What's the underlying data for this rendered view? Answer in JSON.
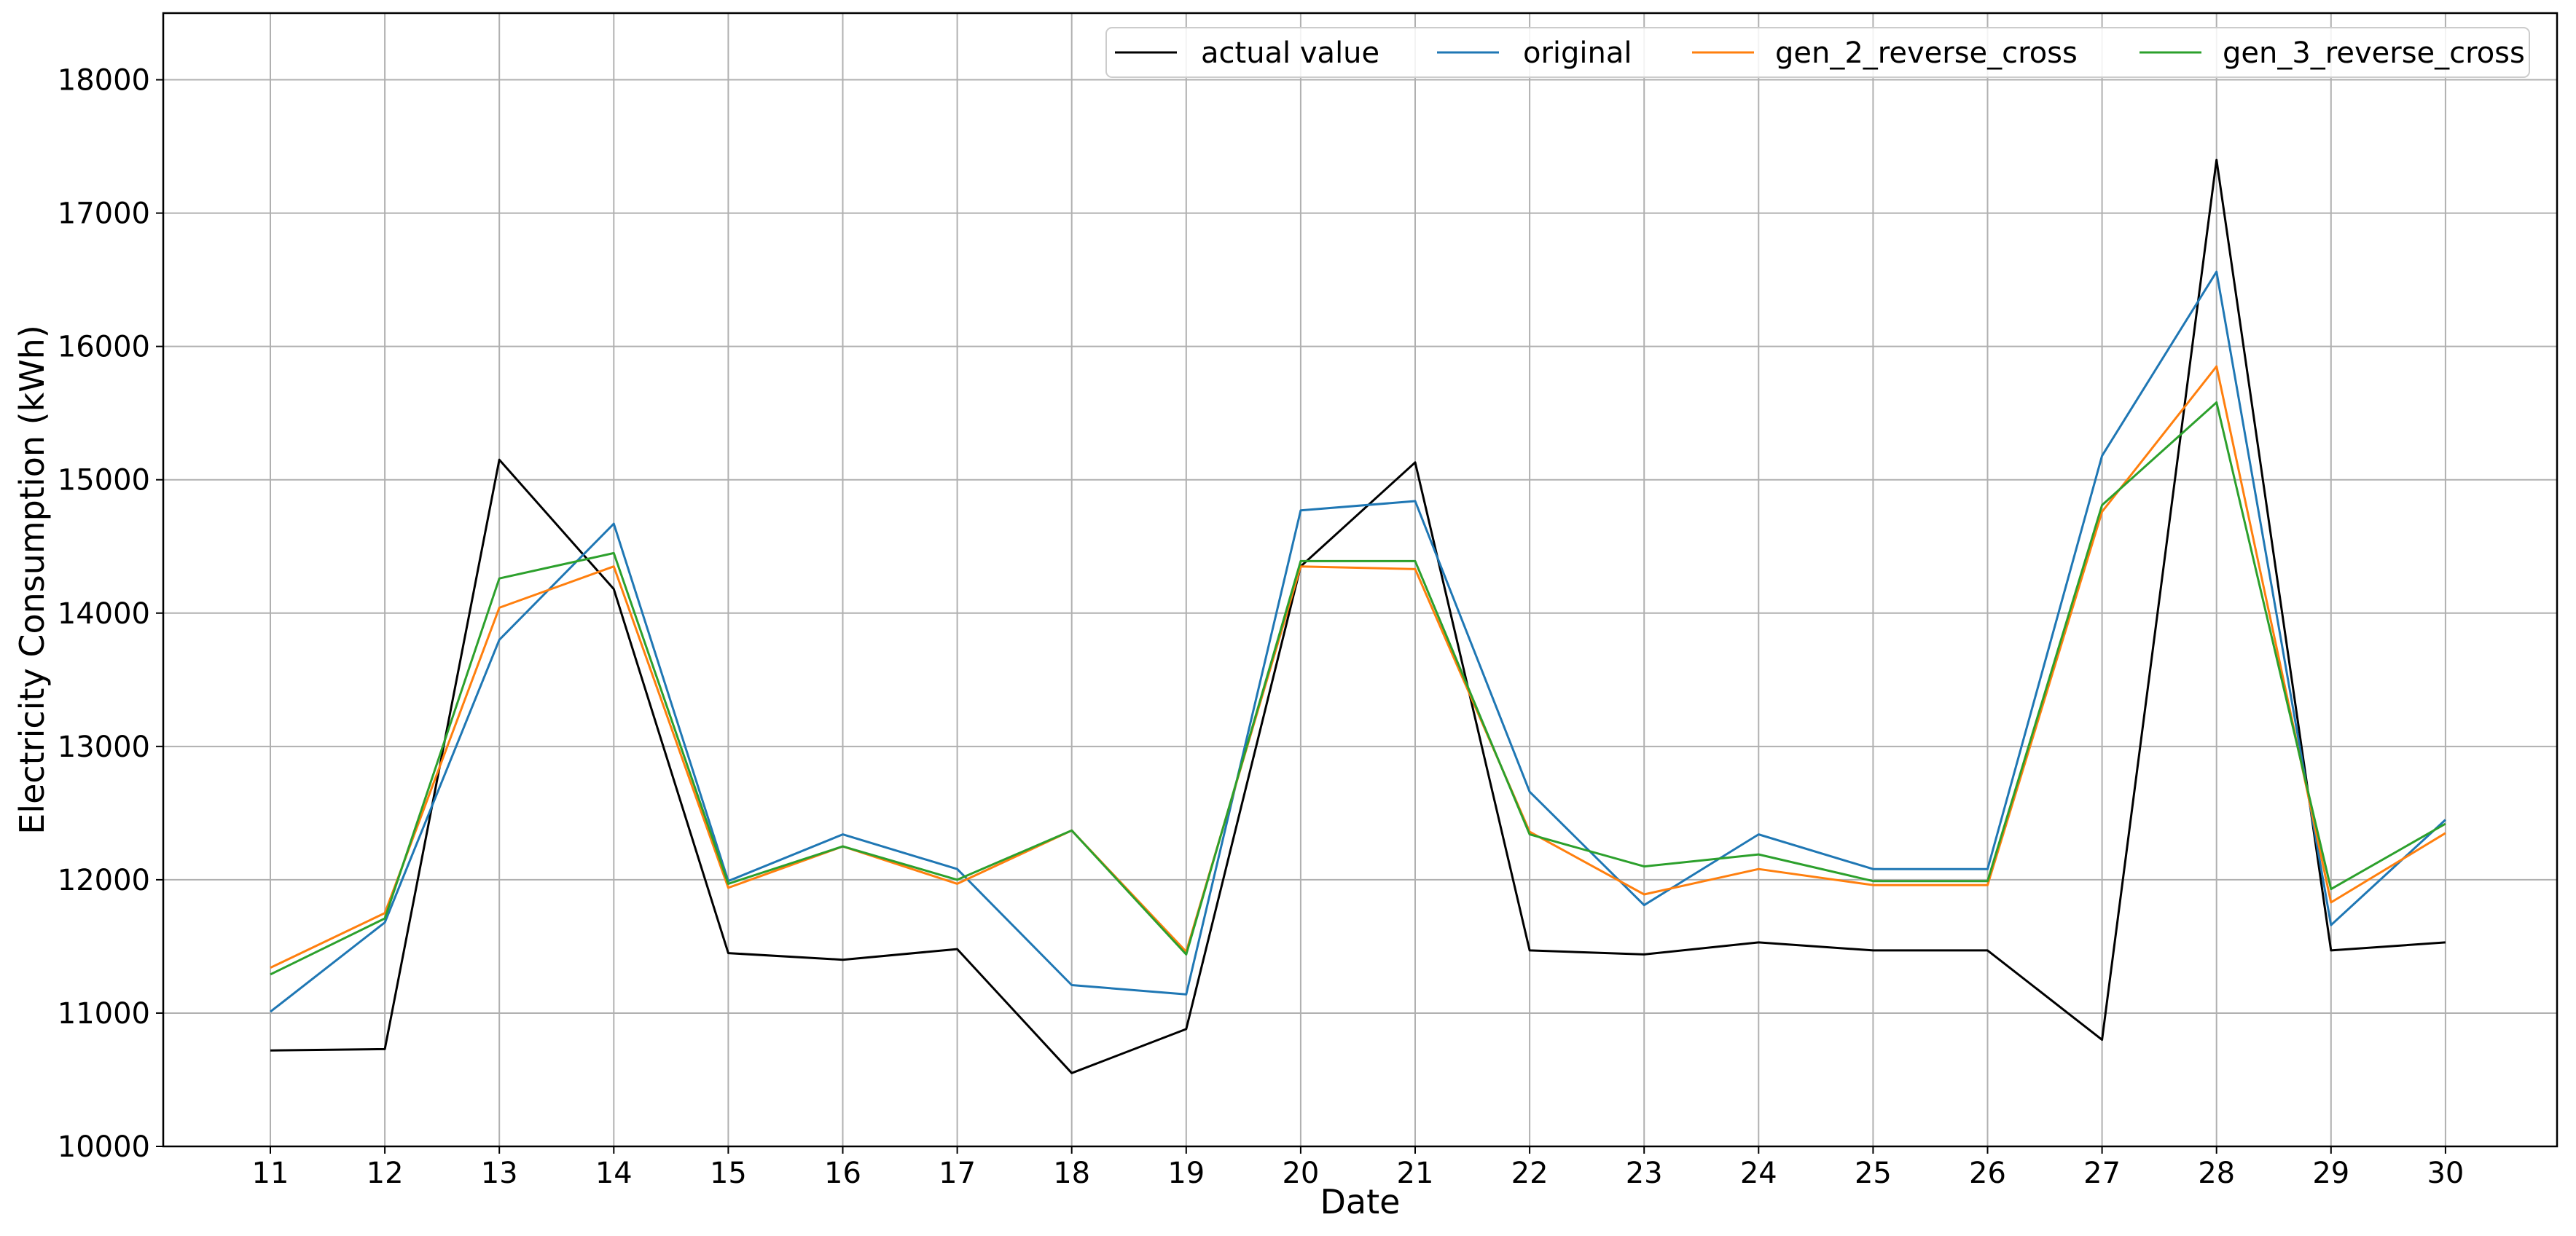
{
  "chart_data": {
    "type": "line",
    "title": "",
    "xlabel": "Date",
    "ylabel": "Electricity Consumption (kWh)",
    "x": [
      11,
      12,
      13,
      14,
      15,
      16,
      17,
      18,
      19,
      20,
      21,
      22,
      23,
      24,
      25,
      26,
      27,
      28,
      29,
      30
    ],
    "x_tick_labels": [
      "11",
      "12",
      "13",
      "14",
      "15",
      "16",
      "17",
      "18",
      "19",
      "20",
      "21",
      "22",
      "23",
      "24",
      "25",
      "26",
      "27",
      "28",
      "29",
      "30"
    ],
    "ylim": [
      10000,
      18500
    ],
    "y_ticks": [
      10000,
      11000,
      12000,
      13000,
      14000,
      15000,
      16000,
      17000,
      18000
    ],
    "y_tick_labels": [
      "10000",
      "11000",
      "12000",
      "13000",
      "14000",
      "15000",
      "16000",
      "17000",
      "18000"
    ],
    "grid": true,
    "legend_position": "top-right",
    "series": [
      {
        "name": "actual value",
        "color": "#000000",
        "values": [
          10720,
          10730,
          15150,
          14180,
          11450,
          11400,
          11480,
          10550,
          10880,
          14350,
          15130,
          11470,
          11440,
          11530,
          11470,
          11470,
          10800,
          17400,
          11470,
          11530
        ]
      },
      {
        "name": "original",
        "color": "#1f77b4",
        "values": [
          11010,
          11680,
          13800,
          14670,
          11990,
          12340,
          12080,
          11210,
          11140,
          14770,
          14840,
          12660,
          11810,
          12340,
          12080,
          12080,
          15180,
          16560,
          11660,
          12450
        ]
      },
      {
        "name": "gen_2_reverse_cross",
        "color": "#ff7f0e",
        "values": [
          11340,
          11750,
          14040,
          14350,
          11940,
          12250,
          11970,
          12370,
          11460,
          14350,
          14330,
          12360,
          11890,
          12080,
          11960,
          11960,
          14760,
          15850,
          11830,
          12350
        ]
      },
      {
        "name": "gen_3_reverse_cross",
        "color": "#2ca02c",
        "values": [
          11290,
          11710,
          14260,
          14450,
          11970,
          12250,
          12000,
          12370,
          11440,
          14390,
          14390,
          12340,
          12100,
          12190,
          11990,
          11990,
          14810,
          15580,
          11930,
          12420
        ]
      }
    ]
  }
}
